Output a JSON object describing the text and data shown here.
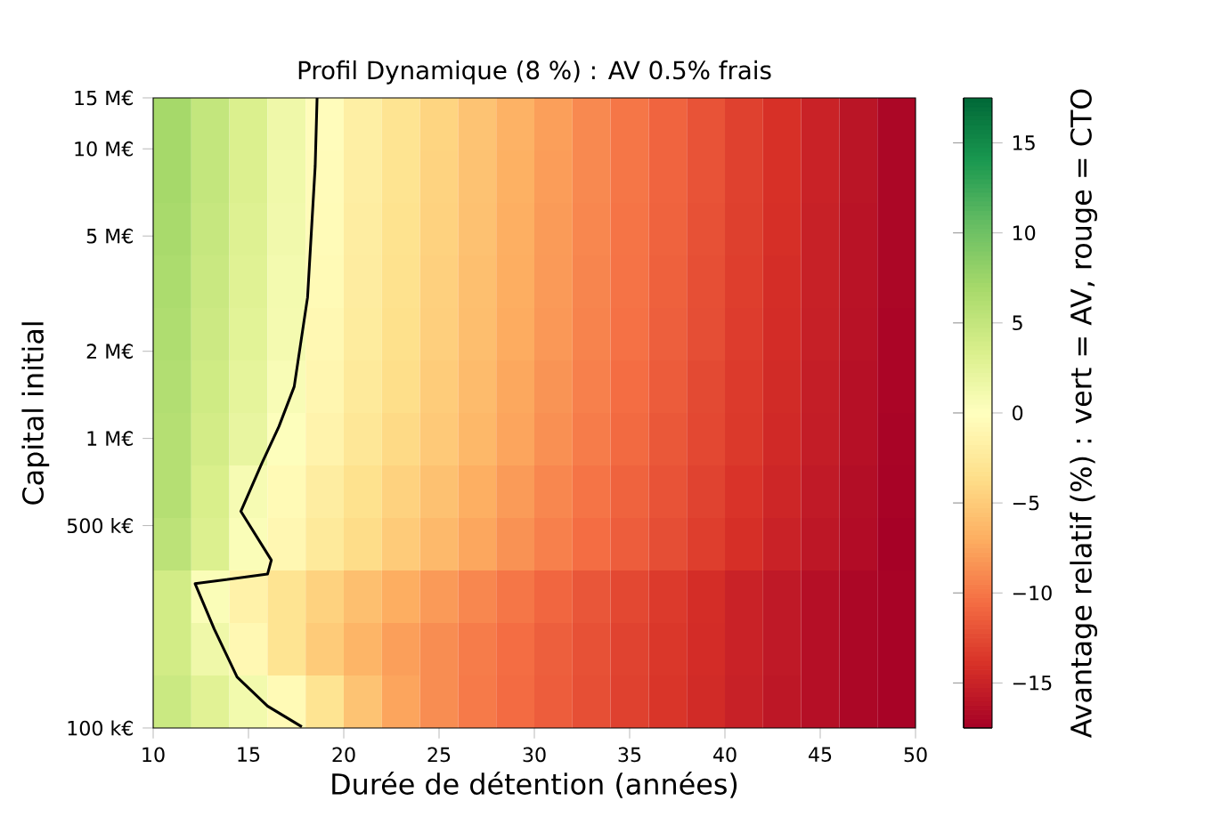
{
  "chart_data": {
    "type": "heatmap",
    "title": "Profil Dynamique (8 %) : AV 0.5% frais",
    "xlabel": "Durée de détention (années)",
    "ylabel": "Capital initial",
    "clabel": "Avantage relatif (%) : vert = AV, rouge = CTO",
    "log": "y",
    "xlim": [
      10,
      50
    ],
    "xticks": [
      {
        "value": 10,
        "label": "10"
      },
      {
        "value": 15,
        "label": "15"
      },
      {
        "value": 20,
        "label": "20"
      },
      {
        "value": 25,
        "label": "25"
      },
      {
        "value": 30,
        "label": "30"
      },
      {
        "value": 35,
        "label": "35"
      },
      {
        "value": 40,
        "label": "40"
      },
      {
        "value": 45,
        "label": "45"
      },
      {
        "value": 50,
        "label": "50"
      }
    ],
    "ylim": [
      100000,
      15000000
    ],
    "yticks": [
      {
        "value": 100000,
        "label": "100 k€"
      },
      {
        "value": 500000,
        "label": "500 k€"
      },
      {
        "value": 1000000,
        "label": "1 M€"
      },
      {
        "value": 2000000,
        "label": "2 M€"
      },
      {
        "value": 5000000,
        "label": "5 M€"
      },
      {
        "value": 10000000,
        "label": "10 M€"
      },
      {
        "value": 15000000,
        "label": "15 M€"
      }
    ],
    "clim": [
      -17.5,
      17.5
    ],
    "cticks": [
      {
        "value": -15,
        "label": "−15"
      },
      {
        "value": -10,
        "label": "−10"
      },
      {
        "value": -5,
        "label": "−5"
      },
      {
        "value": 0,
        "label": "0"
      },
      {
        "value": 5,
        "label": "5"
      },
      {
        "value": 10,
        "label": "10"
      },
      {
        "value": 15,
        "label": "15"
      }
    ],
    "x": [
      11,
      13,
      15,
      17,
      19,
      21,
      23,
      25,
      27,
      29,
      31,
      33,
      35,
      37,
      39,
      41,
      43,
      45,
      47,
      49
    ],
    "cells": [
      [
        7,
        5,
        3.3,
        1.5,
        -0.3,
        -1.8,
        -3,
        -4.3,
        -5.5,
        -6.7,
        -7.8,
        -9,
        -10,
        -11,
        -12,
        -13,
        -14,
        -15,
        -16,
        -17
      ],
      [
        7,
        5,
        3.2,
        1.4,
        -0.4,
        -1.9,
        -3.1,
        -4.4,
        -5.6,
        -6.8,
        -7.9,
        -9,
        -10,
        -11,
        -12,
        -13,
        -14,
        -15,
        -16,
        -17
      ],
      [
        6.8,
        4.8,
        3,
        1.3,
        -0.5,
        -2,
        -3.2,
        -4.5,
        -5.7,
        -6.9,
        -8,
        -9.1,
        -10.1,
        -11.1,
        -12.1,
        -13.1,
        -14.1,
        -15.1,
        -16.1,
        -17
      ],
      [
        6.6,
        4.6,
        2.9,
        1.1,
        -0.6,
        -2.1,
        -3.3,
        -4.6,
        -5.8,
        -7,
        -8.1,
        -9.2,
        -10.2,
        -11.2,
        -12.2,
        -13.2,
        -14.2,
        -15.1,
        -16.1,
        -17
      ],
      [
        6.4,
        4.4,
        2.7,
        1,
        -0.8,
        -2.2,
        -3.4,
        -4.7,
        -5.9,
        -7.1,
        -8.2,
        -9.3,
        -10.3,
        -11.3,
        -12.3,
        -13.3,
        -14.3,
        -15.2,
        -16.2,
        -17.1
      ],
      [
        6.2,
        4.2,
        2.4,
        0.6,
        -1,
        -2.4,
        -3.6,
        -4.9,
        -6.1,
        -7.3,
        -8.4,
        -9.5,
        -10.5,
        -11.5,
        -12.5,
        -13.4,
        -14.4,
        -15.3,
        -16.3,
        -17.1
      ],
      [
        6,
        3.9,
        2.1,
        0.2,
        -1.3,
        -2.7,
        -3.9,
        -5.1,
        -6.3,
        -7.5,
        -8.6,
        -9.7,
        -10.7,
        -11.7,
        -12.6,
        -13.5,
        -14.5,
        -15.4,
        -16.3,
        -17.2
      ],
      [
        6,
        3.5,
        0.8,
        -0.6,
        -2,
        -3.3,
        -4.5,
        -5.7,
        -6.9,
        -8,
        -9.1,
        -10.1,
        -11.1,
        -12,
        -12.9,
        -13.8,
        -14.7,
        -15.6,
        -16.5,
        -17.3
      ],
      [
        5.5,
        3.2,
        0.5,
        -0.9,
        -2.4,
        -3.7,
        -5,
        -6.2,
        -7.4,
        -8.5,
        -9.5,
        -10.5,
        -11.4,
        -12.3,
        -13.2,
        -14.1,
        -15,
        -15.8,
        -16.6,
        -17.4
      ],
      [
        4,
        0.5,
        -1.5,
        -3,
        -4.5,
        -5.8,
        -7,
        -8.1,
        -9.1,
        -10,
        -10.9,
        -11.8,
        -12.6,
        -13.4,
        -14.2,
        -15,
        -15.7,
        -16.4,
        -17,
        -17.3
      ],
      [
        4,
        1.5,
        -0.8,
        -3,
        -5,
        -6.5,
        -7.8,
        -8.8,
        -9.7,
        -10.5,
        -11.3,
        -12.1,
        -12.9,
        -13.6,
        -14.3,
        -15,
        -15.7,
        -16.4,
        -17,
        -17.3
      ],
      [
        4.5,
        2.8,
        1.2,
        -0.6,
        -3,
        -5.5,
        -7.5,
        -8.8,
        -9.8,
        -10.6,
        -11.4,
        -12.2,
        -13,
        -13.7,
        -14.4,
        -15.1,
        -15.8,
        -16.4,
        -17,
        -17.3
      ]
    ],
    "series": [
      {
        "type": "line",
        "color": "#000000",
        "x": [
          18.6,
          18.5,
          18.1,
          17.4,
          16.6,
          15.7,
          14.6,
          16.2,
          16.0,
          12.2,
          13.2,
          14.4,
          16.0,
          17.8
        ],
        "values": [
          15000000,
          8700000,
          3070000,
          1510000,
          1100000,
          820000,
          560000,
          380000,
          340000,
          315000,
          220000,
          150000,
          119000,
          101000
        ]
      }
    ]
  }
}
